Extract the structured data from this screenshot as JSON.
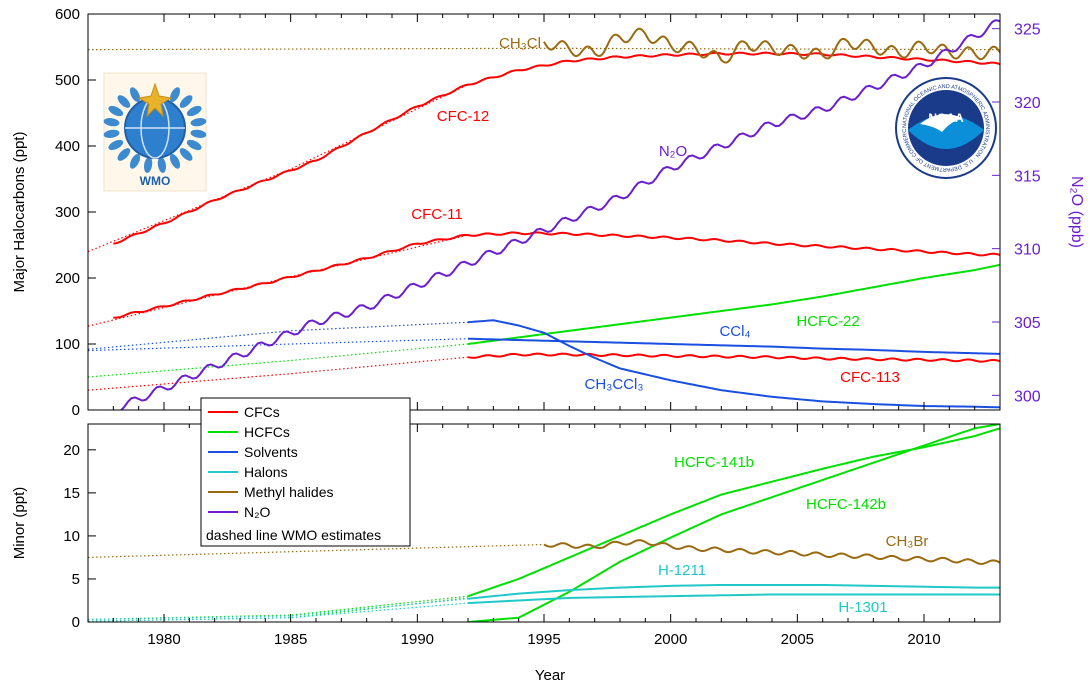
{
  "logos": {
    "wmo": "WMO",
    "noaa": "NOAA",
    "noaa_ring": "NATIONAL OCEANIC AND ATMOSPHERIC ADMINISTRATION · U.S. DEPARTMENT OF COMMERCE"
  },
  "chart_data": [
    {
      "panel": "major",
      "type": "line",
      "xlabel": "Year",
      "ylabel": "Major Halocarbons (ppt)",
      "y2label": "N₂O (ppb)",
      "xlim": [
        1977,
        2013
      ],
      "ylim": [
        0,
        600
      ],
      "y2lim": [
        299,
        326
      ],
      "grid": false,
      "xticks": [
        1980,
        1985,
        1990,
        1995,
        2000,
        2005,
        2010
      ],
      "yticks": [
        0,
        100,
        200,
        300,
        400,
        500,
        600
      ],
      "y2ticks": [
        300,
        305,
        310,
        315,
        320,
        325
      ],
      "series": [
        {
          "name": "CFC-12",
          "group": "CFCs",
          "color": "#ff0000",
          "x": [
            1978,
            1980,
            1982,
            1984,
            1986,
            1988,
            1990,
            1992,
            1994,
            1996,
            1998,
            2000,
            2002,
            2004,
            2006,
            2008,
            2010,
            2012,
            2013
          ],
          "y": [
            252,
            283,
            318,
            348,
            378,
            420,
            460,
            493,
            515,
            529,
            535,
            538,
            540,
            540,
            539,
            535,
            531,
            527,
            524
          ]
        },
        {
          "name": "CFC-11",
          "group": "CFCs",
          "color": "#ff0000",
          "x": [
            1978,
            1980,
            1982,
            1984,
            1986,
            1988,
            1990,
            1992,
            1994,
            1996,
            1998,
            2000,
            2002,
            2004,
            2006,
            2008,
            2010,
            2012,
            2013
          ],
          "y": [
            140,
            157,
            175,
            192,
            211,
            230,
            252,
            265,
            268,
            267,
            264,
            261,
            257,
            252,
            248,
            244,
            240,
            236,
            235
          ]
        },
        {
          "name": "CFC-113",
          "group": "CFCs",
          "color": "#ff0000",
          "x": [
            1992,
            1994,
            1996,
            1998,
            2000,
            2002,
            2004,
            2006,
            2008,
            2010,
            2012,
            2013
          ],
          "y": [
            80,
            84,
            84,
            83,
            82,
            81,
            80,
            78,
            77,
            76,
            75,
            74
          ]
        },
        {
          "name": "HCFC-22",
          "group": "HCFCs",
          "color": "#00e000",
          "x": [
            1992,
            1994,
            1996,
            1998,
            2000,
            2002,
            2004,
            2006,
            2008,
            2010,
            2012,
            2013
          ],
          "y": [
            100,
            110,
            120,
            130,
            140,
            150,
            160,
            172,
            186,
            200,
            212,
            220
          ]
        },
        {
          "name": "CCl₄",
          "group": "Solvents",
          "color": "#1a4fe0",
          "x": [
            1992,
            1994,
            1996,
            1998,
            2000,
            2002,
            2004,
            2006,
            2008,
            2010,
            2012,
            2013
          ],
          "y": [
            108,
            106,
            104,
            102,
            100,
            98,
            96,
            93,
            91,
            88,
            86,
            85
          ]
        },
        {
          "name": "CH₃CCl₃",
          "group": "Solvents",
          "color": "#1a4fe0",
          "x": [
            1992,
            1993,
            1994,
            1995,
            1996,
            1997,
            1998,
            2000,
            2002,
            2004,
            2006,
            2008,
            2010,
            2012,
            2013
          ],
          "y": [
            133,
            136,
            128,
            117,
            97,
            79,
            63,
            45,
            30,
            20,
            13,
            9,
            6,
            5,
            4
          ]
        },
        {
          "name": "CH₃Cl",
          "group": "Methyl halides",
          "color": "#9a6a10",
          "x": [
            1995,
            1996,
            1997,
            1998,
            1999,
            2000,
            2001,
            2002,
            2003,
            2004,
            2005,
            2006,
            2007,
            2008,
            2009,
            2010,
            2011,
            2012,
            2013
          ],
          "y": [
            558,
            547,
            540,
            565,
            570,
            552,
            548,
            530,
            555,
            548,
            543,
            537,
            558,
            550,
            540,
            552,
            542,
            540,
            542
          ]
        },
        {
          "name": "N₂O",
          "group": "N₂O",
          "axis": "right",
          "color": "#6a1ecf",
          "x": [
            1978,
            1980,
            1982,
            1984,
            1986,
            1988,
            1990,
            1992,
            1994,
            1996,
            1998,
            2000,
            2002,
            2004,
            2006,
            2008,
            2010,
            2012,
            2013
          ],
          "y": [
            299,
            300.5,
            302,
            303.5,
            305,
            306,
            307.5,
            309,
            310.5,
            312,
            313.5,
            315.5,
            317,
            318.5,
            319.5,
            321,
            322.5,
            324.5,
            325.5
          ]
        }
      ],
      "wmo_estimates": [
        {
          "of": "CFC-12",
          "x": [
            1977,
            1985,
            1992
          ],
          "y": [
            240,
            365,
            493
          ]
        },
        {
          "of": "CFC-11",
          "x": [
            1977,
            1985,
            1992
          ],
          "y": [
            127,
            202,
            265
          ]
        },
        {
          "of": "CFC-113",
          "x": [
            1977,
            1985,
            1992
          ],
          "y": [
            30,
            55,
            80
          ]
        },
        {
          "of": "CCl₄",
          "x": [
            1977,
            1985,
            1992
          ],
          "y": [
            90,
            100,
            108
          ]
        },
        {
          "of": "CH₃CCl₃",
          "x": [
            1977,
            1985,
            1992
          ],
          "y": [
            92,
            120,
            133
          ]
        },
        {
          "of": "HCFC-22",
          "x": [
            1977,
            1985,
            1992
          ],
          "y": [
            50,
            75,
            100
          ]
        },
        {
          "of": "CH₃Cl",
          "x": [
            1977,
            1995,
            2013
          ],
          "y": [
            546,
            548,
            546
          ]
        }
      ]
    },
    {
      "panel": "minor",
      "type": "line",
      "xlabel": "Year",
      "ylabel": "Minor (ppt)",
      "xlim": [
        1977,
        2013
      ],
      "ylim": [
        0,
        23
      ],
      "grid": false,
      "xticks": [
        1980,
        1985,
        1990,
        1995,
        2000,
        2005,
        2010
      ],
      "yticks": [
        0,
        5,
        10,
        15,
        20
      ],
      "series": [
        {
          "name": "HCFC-141b",
          "group": "HCFCs",
          "color": "#00e000",
          "x": [
            1992,
            1994,
            1996,
            1998,
            2000,
            2002,
            2004,
            2006,
            2008,
            2010,
            2012,
            2013
          ],
          "y": [
            3,
            5,
            7.5,
            10,
            12.5,
            14.8,
            16.3,
            17.8,
            19.2,
            20.3,
            21.6,
            22.5
          ]
        },
        {
          "name": "HCFC-142b",
          "group": "HCFCs",
          "color": "#00e000",
          "x": [
            1992,
            1994,
            1995,
            1996,
            1998,
            2000,
            2002,
            2004,
            2006,
            2008,
            2010,
            2012,
            2013
          ],
          "y": [
            0,
            0.5,
            2,
            3.5,
            7,
            9.8,
            12.5,
            14.5,
            16.5,
            18.5,
            20.5,
            22.5,
            23
          ]
        },
        {
          "name": "H-1211",
          "group": "Halons",
          "color": "#20c8c8",
          "x": [
            1992,
            1994,
            1996,
            1998,
            2000,
            2002,
            2004,
            2006,
            2008,
            2010,
            2012,
            2013
          ],
          "y": [
            2.7,
            3.3,
            3.7,
            4,
            4.2,
            4.3,
            4.3,
            4.3,
            4.2,
            4.1,
            4,
            4
          ]
        },
        {
          "name": "H-1301",
          "group": "Halons",
          "color": "#20c8c8",
          "x": [
            1992,
            1994,
            1996,
            1998,
            2000,
            2002,
            2004,
            2006,
            2008,
            2010,
            2012,
            2013
          ],
          "y": [
            2.2,
            2.5,
            2.8,
            2.9,
            3,
            3.1,
            3.2,
            3.2,
            3.2,
            3.2,
            3.2,
            3.2
          ]
        },
        {
          "name": "CH₃Br",
          "group": "Methyl halides",
          "color": "#9a6a10",
          "x": [
            1995,
            1996,
            1997,
            1998,
            1999,
            2000,
            2001,
            2002,
            2003,
            2004,
            2005,
            2006,
            2007,
            2008,
            2009,
            2010,
            2011,
            2012,
            2013
          ],
          "y": [
            9,
            8.9,
            8.7,
            9.2,
            9.3,
            8.8,
            8.5,
            8.4,
            8.2,
            8.1,
            8,
            7.8,
            7.7,
            7.6,
            7.4,
            7.3,
            7.2,
            7,
            6.9
          ]
        }
      ],
      "wmo_estimates": [
        {
          "of": "CH₃Br",
          "x": [
            1977,
            1995
          ],
          "y": [
            7.5,
            9
          ]
        },
        {
          "of": "HCFC-141b",
          "x": [
            1977,
            1985,
            1992
          ],
          "y": [
            0.3,
            0.8,
            3
          ]
        },
        {
          "of": "HCFC-142b",
          "x": [
            1977,
            1985,
            1992
          ],
          "y": [
            0.1,
            0.5,
            2.8
          ]
        },
        {
          "of": "H-1211",
          "x": [
            1977,
            1985,
            1992
          ],
          "y": [
            0.3,
            0.7,
            2.7
          ]
        },
        {
          "of": "H-1301",
          "x": [
            1977,
            1985,
            1992
          ],
          "y": [
            0.1,
            0.5,
            2.2
          ]
        }
      ]
    }
  ],
  "legend": {
    "position": "inside bottom-left of upper panel",
    "items": [
      {
        "label": "CFCs",
        "color": "#ff0000"
      },
      {
        "label": "HCFCs",
        "color": "#00e000"
      },
      {
        "label": "Solvents",
        "color": "#1a4fe0"
      },
      {
        "label": "Halons",
        "color": "#20c8c8"
      },
      {
        "label": "Methyl halides",
        "color": "#9a6a10"
      },
      {
        "label": "N₂O",
        "color": "#6a1ecf"
      }
    ],
    "note": "dashed line WMO estimates"
  }
}
